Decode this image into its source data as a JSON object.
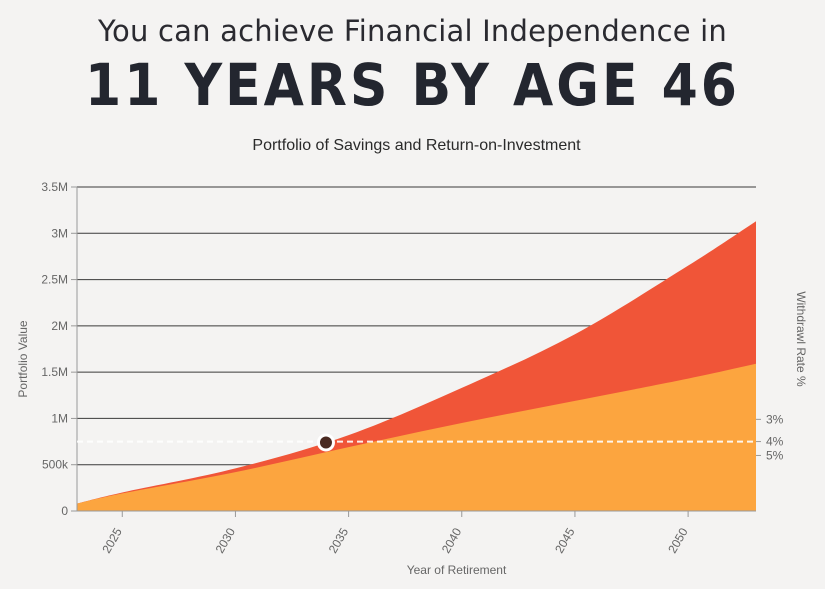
{
  "header": {
    "headline": "You can achieve Financial Independence in",
    "big_text": "11 YEARS BY AGE 46"
  },
  "chart_data": {
    "type": "area",
    "title": "Portfolio of Savings and Return-on-Investment",
    "xlabel": "Year of Retirement",
    "ylabel": "Portfolio Value",
    "y2label": "Withdrawl Rate %",
    "xlim": [
      2023,
      2053
    ],
    "ylim": [
      0,
      3500000
    ],
    "x_ticks": [
      "2025",
      "2030",
      "2035",
      "2040",
      "2045",
      "2050"
    ],
    "y_ticks": [
      {
        "value": 0,
        "label": "0"
      },
      {
        "value": 500000,
        "label": "500k"
      },
      {
        "value": 1000000,
        "label": "1M"
      },
      {
        "value": 1500000,
        "label": "1.5M"
      },
      {
        "value": 2000000,
        "label": "2M"
      },
      {
        "value": 2500000,
        "label": "2.5M"
      },
      {
        "value": 3000000,
        "label": "3M"
      },
      {
        "value": 3500000,
        "label": "3.5M"
      }
    ],
    "withdrawal_labels": [
      {
        "label": "3%",
        "value": 990000
      },
      {
        "label": "4%",
        "value": 750000
      },
      {
        "label": "5%",
        "value": 600000
      }
    ],
    "fi_threshold": 750000,
    "fi_point": {
      "x": 2034,
      "y": 740000
    },
    "colors": {
      "savings": "#fca53f",
      "roi": "#f05538",
      "grid": "#3a3a3a",
      "dashed": "#ffffff",
      "marker": "#4a2a22"
    },
    "series": [
      {
        "key": "savings",
        "x": [
          2023,
          2025,
          2030,
          2035,
          2040,
          2045,
          2050,
          2053
        ],
        "values": [
          80000,
          190000,
          420000,
          690000,
          950000,
          1190000,
          1430000,
          1590000
        ]
      },
      {
        "key": "total",
        "x": [
          2023,
          2025,
          2030,
          2035,
          2040,
          2045,
          2050,
          2053
        ],
        "values": [
          80000,
          200000,
          460000,
          820000,
          1330000,
          1910000,
          2650000,
          3130000
        ]
      }
    ]
  }
}
